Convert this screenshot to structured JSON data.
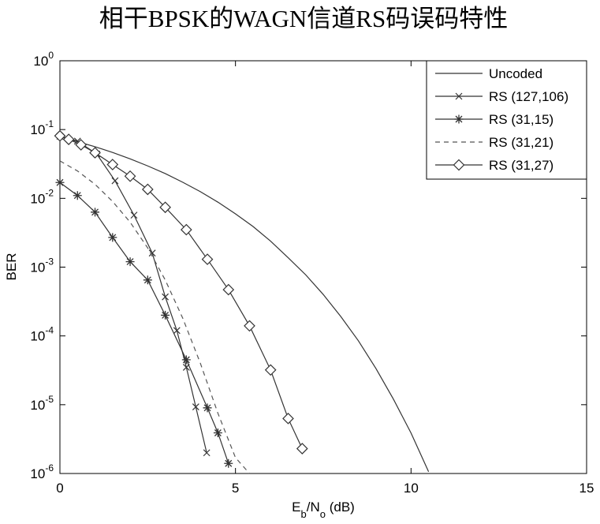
{
  "chart_data": {
    "type": "line",
    "title": "相干BPSK的WAGN信道RS码误码特性",
    "xlabel_parts": [
      "E",
      "b",
      "/N",
      "o",
      " (dB)"
    ],
    "ylabel": "BER",
    "log_y": true,
    "xlim": [
      0,
      15
    ],
    "xticks": [
      0,
      5,
      10,
      15
    ],
    "ylim": [
      1e-06,
      1
    ],
    "yticks": [
      {
        "value": 1,
        "label": "10",
        "exponent": "0"
      },
      {
        "value": 0.1,
        "label": "10",
        "exponent": "-1"
      },
      {
        "value": 0.01,
        "label": "10",
        "exponent": "-2"
      },
      {
        "value": 0.001,
        "label": "10",
        "exponent": "-3"
      },
      {
        "value": 0.0001,
        "label": "10",
        "exponent": "-4"
      },
      {
        "value": 1e-05,
        "label": "10",
        "exponent": "-5"
      },
      {
        "value": 1e-06,
        "label": "10",
        "exponent": "-6"
      }
    ],
    "legend": "northeast",
    "series": [
      {
        "name": "Uncoded",
        "color": "#333333",
        "style": "solid",
        "marker": null,
        "x": [
          0,
          0.5,
          1,
          1.5,
          2,
          2.5,
          3,
          3.5,
          4,
          4.5,
          5,
          5.5,
          6,
          6.5,
          7,
          7.5,
          8,
          8.5,
          9,
          9.5,
          10,
          10.5
        ],
        "values": [
          0.0786,
          0.0667,
          0.0563,
          0.0464,
          0.0375,
          0.0296,
          0.0229,
          0.0171,
          0.0125,
          0.0088,
          0.00595,
          0.0039,
          0.00239,
          0.00137,
          0.000773,
          0.0004,
          0.000191,
          8.5e-05,
          3.36e-05,
          1.2e-05,
          3.87e-06,
          1.06e-06
        ]
      },
      {
        "name": "RS (127,106)",
        "color": "#333333",
        "style": "solid",
        "marker": "x",
        "x": [
          0,
          0.5,
          1.05,
          1.57,
          2.11,
          2.63,
          3.0,
          3.33,
          3.6,
          3.87,
          4.18
        ],
        "values": [
          0.08,
          0.068,
          0.044,
          0.018,
          0.0057,
          0.0016,
          0.00037,
          0.00012,
          3.5e-05,
          9.3e-06,
          2e-06
        ]
      },
      {
        "name": "RS (31,15)",
        "color": "#333333",
        "style": "solid",
        "marker": "star",
        "x": [
          0,
          0.5,
          1,
          1.5,
          2,
          2.5,
          3,
          3.6,
          4.2,
          4.5,
          4.8
        ],
        "values": [
          0.017,
          0.011,
          0.0063,
          0.0027,
          0.0012,
          0.00065,
          0.0002,
          4.5e-05,
          9e-06,
          3.9e-06,
          1.4e-06
        ]
      },
      {
        "name": "RS (31,21)",
        "color": "#555555",
        "style": "dashed",
        "marker": null,
        "x": [
          0,
          0.5,
          1,
          1.5,
          2,
          2.5,
          3,
          3.5,
          4,
          4.5,
          5,
          5.4
        ],
        "values": [
          0.035,
          0.025,
          0.016,
          0.009,
          0.0045,
          0.0019,
          0.00065,
          0.00018,
          4e-05,
          7.5e-06,
          1.7e-06,
          1e-06
        ]
      },
      {
        "name": "RS (31,27)",
        "color": "#333333",
        "style": "solid",
        "marker": "diamond",
        "x": [
          0,
          0.25,
          0.6,
          1,
          1.5,
          2,
          2.5,
          3,
          3.6,
          4.2,
          4.8,
          5.4,
          6,
          6.5,
          6.9
        ],
        "values": [
          0.081,
          0.072,
          0.06,
          0.046,
          0.031,
          0.021,
          0.0135,
          0.0074,
          0.0035,
          0.0013,
          0.00047,
          0.00014,
          3.2e-05,
          6.3e-06,
          2.3e-06
        ]
      }
    ]
  }
}
